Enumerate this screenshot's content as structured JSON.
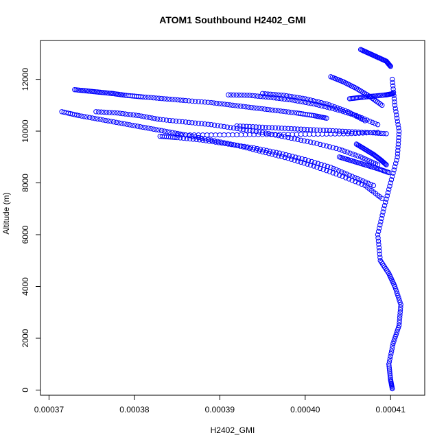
{
  "chart_data": {
    "type": "scatter",
    "title": "ATOM1 Southbound H2402_GMI",
    "xlabel": "H2402_GMI",
    "ylabel": "Altitude (m)",
    "xlim": [
      0.000369,
      0.000414
    ],
    "ylim": [
      -200,
      13500
    ],
    "x_ticks": [
      0.00037,
      0.00038,
      0.00039,
      0.0004,
      0.00041
    ],
    "x_tick_labels": [
      "0.00037",
      "0.00038",
      "0.00039",
      "0.00040",
      "0.00041"
    ],
    "y_ticks": [
      0,
      2000,
      4000,
      6000,
      8000,
      10000,
      12000
    ],
    "y_tick_labels": [
      "0",
      "2000",
      "4000",
      "6000",
      "8000",
      "10000",
      "12000"
    ],
    "grid": false,
    "marker": "open-circle",
    "color": "#0000ff",
    "series": [
      {
        "x": [
          0.000373,
          0.0003745,
          0.000376,
          0.0003775,
          0.000379,
          0.000381,
          0.0003835,
          0.000386,
          0.000389,
          0.0003915,
          0.000394,
          0.0003965,
          0.000399,
          0.000401,
          0.0004025
        ],
        "y": [
          11600,
          11550,
          11500,
          11450,
          11380,
          11320,
          11250,
          11180,
          11100,
          11000,
          10900,
          10800,
          10700,
          10600,
          10500
        ]
      },
      {
        "x": [
          0.0003715,
          0.0003735,
          0.000376,
          0.0003785,
          0.000381,
          0.0003835,
          0.000386,
          0.000389,
          0.000392,
          0.000395,
          0.000398,
          0.000401,
          0.000404,
          0.000407,
          0.000409
        ],
        "y": [
          10750,
          10600,
          10450,
          10300,
          10150,
          10000,
          9850,
          9650,
          9450,
          9200,
          8950,
          8650,
          8300,
          7900,
          7400
        ]
      },
      {
        "x": [
          0.0003755,
          0.000378,
          0.0003805,
          0.000383,
          0.000386,
          0.000389,
          0.000392,
          0.000395,
          0.000398,
          0.000401,
          0.000404,
          0.0004065,
          0.0004085
        ],
        "y": [
          10750,
          10700,
          10600,
          10450,
          10350,
          10250,
          10100,
          9950,
          9750,
          9550,
          9300,
          9000,
          8700
        ]
      },
      {
        "x": [
          0.000383,
          0.000385,
          0.000388,
          0.000391,
          0.000394,
          0.000397,
          0.0004,
          0.000403,
          0.0004055,
          0.000408
        ],
        "y": [
          9800,
          9750,
          9650,
          9500,
          9350,
          9150,
          8900,
          8600,
          8250,
          7900
        ]
      },
      {
        "x": [
          0.000391,
          0.0003935,
          0.000396,
          0.0003985,
          0.000401,
          0.0004035,
          0.000406,
          0.0004085
        ],
        "y": [
          11400,
          11380,
          11300,
          11200,
          11050,
          10850,
          10600,
          10250
        ]
      },
      {
        "x": [
          0.000395,
          0.0003975,
          0.0004,
          0.0004025,
          0.000405,
          0.000407
        ],
        "y": [
          11450,
          11380,
          11250,
          11050,
          10750,
          10400
        ]
      },
      {
        "x": [
          0.000385,
          0.000389,
          0.000393,
          0.000397,
          0.000401,
          0.000405,
          0.0004085
        ],
        "y": [
          9850,
          9850,
          9860,
          9870,
          9880,
          9900,
          9950
        ]
      },
      {
        "x": [
          0.000392,
          0.000395,
          0.000398,
          0.000401,
          0.000404,
          0.000407,
          0.0004095
        ],
        "y": [
          10200,
          10150,
          10100,
          10050,
          10000,
          9950,
          9900
        ]
      },
      {
        "x": [
          0.000403,
          0.0004045,
          0.000406,
          0.0004075,
          0.000409
        ],
        "y": [
          12100,
          11900,
          11650,
          11350,
          11000
        ]
      },
      {
        "x": [
          0.0004065,
          0.0004075,
          0.0004085,
          0.0004095,
          0.00041
        ],
        "y": [
          13150,
          13000,
          12850,
          12700,
          12500
        ]
      },
      {
        "x": [
          0.0004052,
          0.0004065,
          0.000408,
          0.0004095,
          0.0004103
        ],
        "y": [
          11250,
          11300,
          11350,
          11400,
          11450
        ]
      },
      {
        "x": [
          0.000404,
          0.0004055,
          0.000407,
          0.0004085,
          0.0004098
        ],
        "y": [
          9000,
          8850,
          8700,
          8550,
          8400
        ]
      },
      {
        "x": [
          0.000406,
          0.000407,
          0.000408,
          0.0004088,
          0.0004095
        ],
        "y": [
          9500,
          9300,
          9100,
          8900,
          8700
        ]
      },
      {
        "x": [
          0.0004102,
          0.0004105,
          0.000411,
          0.0004108,
          0.00041,
          0.0004092,
          0.0004085,
          0.0004088,
          0.0004098,
          0.0004105,
          0.0004112,
          0.000411,
          0.0004103,
          0.0004098,
          0.00041,
          0.0004102
        ],
        "y": [
          12000,
          11000,
          10000,
          9000,
          8000,
          7000,
          6000,
          5000,
          4500,
          4000,
          3300,
          2500,
          1800,
          1000,
          400,
          50
        ]
      }
    ]
  }
}
